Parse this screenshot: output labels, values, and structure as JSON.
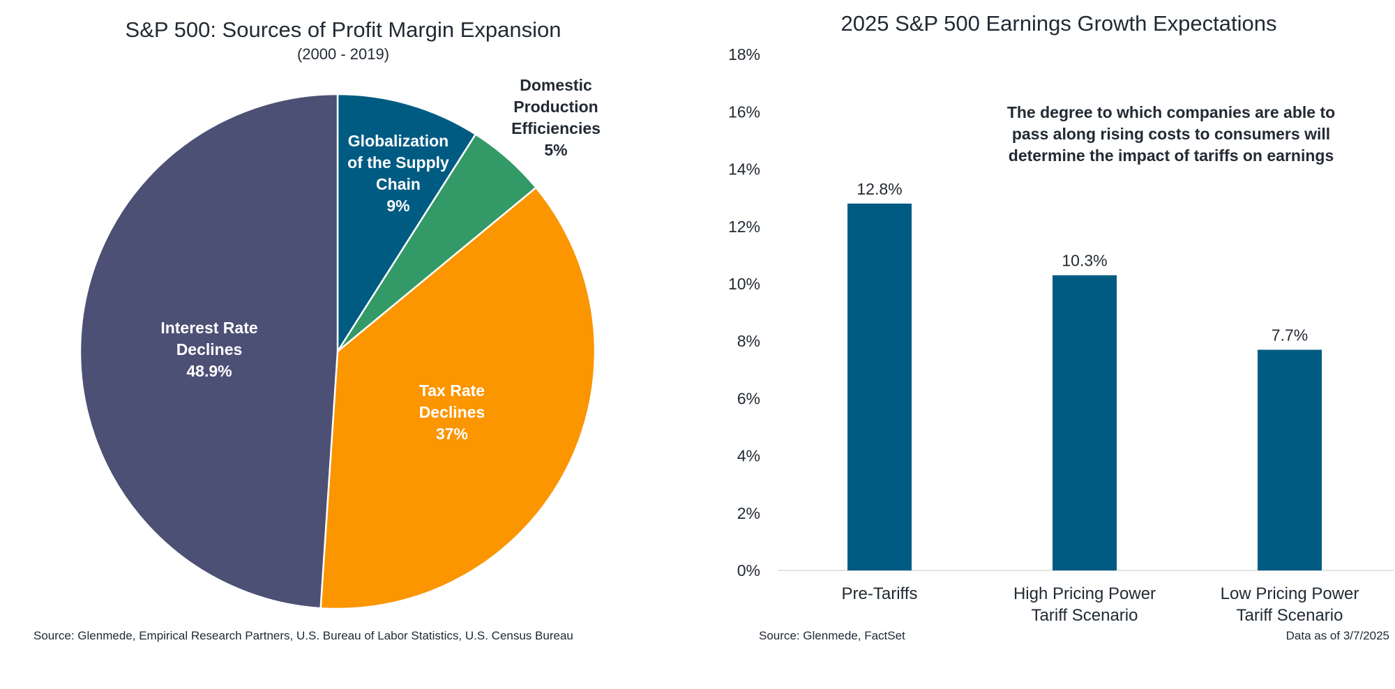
{
  "chart_data": [
    {
      "type": "pie",
      "title": "S&P 500: Sources of Profit Margin Expansion",
      "subtitle": "(2000 - 2019)",
      "slices": [
        {
          "label": [
            "Globalization",
            "of the Supply",
            "Chain",
            "9%"
          ],
          "value": 9,
          "color": "#005b82",
          "label_position": "inside"
        },
        {
          "label": [
            "Domestic",
            "Production",
            "Efficiencies",
            "5%"
          ],
          "value": 5,
          "color": "#339966",
          "label_position": "outside"
        },
        {
          "label": [
            "Tax Rate",
            "Declines",
            "37%"
          ],
          "value": 37,
          "color": "#fb9500",
          "label_position": "inside"
        },
        {
          "label": [
            "Interest Rate",
            "Declines",
            "48.9%"
          ],
          "value": 48.9,
          "color": "#4d5075",
          "label_position": "inside"
        }
      ],
      "start_angle": "12 o'clock",
      "direction": "clockwise",
      "source": "Source: Glenmede, Empirical Research Partners, U.S. Bureau of Labor Statistics, U.S. Census Bureau"
    },
    {
      "type": "bar",
      "title": "2025 S&P 500 Earnings Growth Expectations",
      "categories": [
        [
          "Pre-Tariffs"
        ],
        [
          "High Pricing Power",
          "Tariff Scenario"
        ],
        [
          "Low Pricing Power",
          "Tariff Scenario"
        ]
      ],
      "values": [
        12.8,
        10.3,
        7.7
      ],
      "data_labels": [
        "12.8%",
        "10.3%",
        "7.7%"
      ],
      "bar_color": "#005b82",
      "ylim": [
        0,
        18
      ],
      "yticks": [
        "0%",
        "2%",
        "4%",
        "6%",
        "8%",
        "10%",
        "12%",
        "14%",
        "16%",
        "18%"
      ],
      "annotation": [
        "The degree to which companies are able to",
        "pass along rising costs to consumers will",
        "determine the impact of tariffs on earnings"
      ],
      "grid": false,
      "source": "Source: Glenmede, FactSet",
      "date_note": "Data as of 3/7/2025"
    }
  ]
}
